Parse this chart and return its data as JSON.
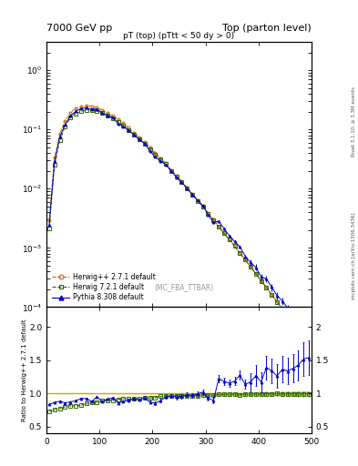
{
  "title_left": "7000 GeV pp",
  "title_right": "Top (parton level)",
  "plot_title": "pT (top) (pTtt < 50 dy > 0)",
  "watermark": "(MC_FBA_TTBAR)",
  "right_label_top": "Rivet 3.1.10; ≥ 3.3M events",
  "right_label_bot": "mcplots.cern.ch [arXiv:1306.3436]",
  "ylabel_ratio": "Ratio to Herwig++ 2.7.1 default",
  "xlim": [
    0,
    500
  ],
  "ylim_main": [
    0.0001,
    3
  ],
  "ylim_ratio": [
    0.4,
    2.3
  ],
  "yticks_ratio": [
    0.5,
    1.0,
    1.5,
    2.0
  ],
  "herwig_pp_color": "#cc6600",
  "herwig7_color": "#336600",
  "pythia_color": "#0000cc",
  "band_color_pp": "#ffdd88",
  "band_color_h7": "#88cc88",
  "ref_line_color": "#ccaa00",
  "herwig_pp_label": "Herwig++ 2.7.1 default",
  "herwig7_label": "Herwig 7.2.1 default",
  "pythia_label": "Pythia 8.308 default"
}
